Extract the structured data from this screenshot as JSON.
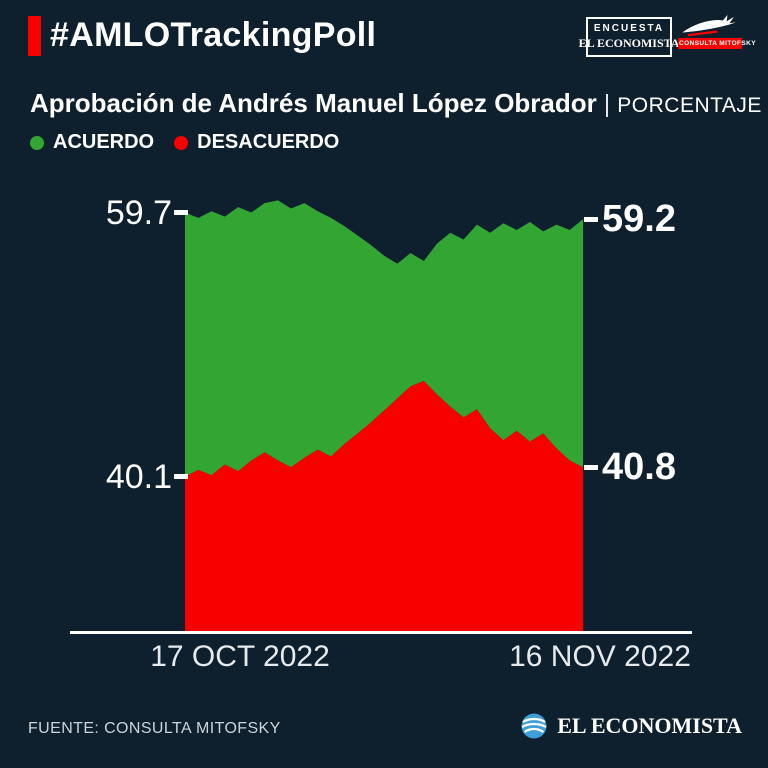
{
  "page": {
    "bg": "#0e1f2e",
    "accent_red": "#f80000",
    "green": "#33a532",
    "brand_blue": "#3f9fd8"
  },
  "header": {
    "hashtag": "#AMLOTrackingPoll",
    "encuesta_logo": {
      "top": "ENCUESTA",
      "bottom": "EL ECONOMISTA"
    },
    "mitofsky_logo": {
      "label": "CONSULTA MITOFSKY"
    }
  },
  "title": {
    "main": "Aprobación de Andrés Manuel López Obrador",
    "separator": "|",
    "suffix": "PORCENTAJE"
  },
  "legend": [
    {
      "label": "ACUERDO",
      "color": "#33a532"
    },
    {
      "label": "DESACUERDO",
      "color": "#f80000"
    }
  ],
  "chart_data": {
    "type": "area",
    "title": "Aprobación de Andrés Manuel López Obrador (porcentaje)",
    "x_axis": {
      "tick_labels": [
        "17 OCT 2022",
        "16 NOV 2022"
      ]
    },
    "ylim": [
      28.5,
      61
    ],
    "grid": false,
    "legend_position": "top-left",
    "series": [
      {
        "name": "ACUERDO",
        "color": "#33a532",
        "values": [
          59.7,
          59.3,
          59.8,
          59.4,
          60.1,
          59.7,
          60.4,
          60.6,
          60.0,
          60.4,
          59.8,
          59.3,
          58.7,
          58.0,
          57.3,
          56.5,
          55.9,
          56.7,
          56.1,
          57.4,
          58.2,
          57.7,
          58.8,
          58.2,
          58.9,
          58.4,
          59.0,
          58.3,
          58.8,
          58.4,
          59.2
        ]
      },
      {
        "name": "DESACUERDO",
        "color": "#f80000",
        "values": [
          40.1,
          40.6,
          40.2,
          41.0,
          40.5,
          41.3,
          41.9,
          41.3,
          40.8,
          41.5,
          42.1,
          41.6,
          42.5,
          43.3,
          44.1,
          45.0,
          45.9,
          46.8,
          47.2,
          46.2,
          45.3,
          44.5,
          45.1,
          43.7,
          42.8,
          43.5,
          42.7,
          43.3,
          42.2,
          41.3,
          40.8
        ]
      }
    ],
    "edge_labels": {
      "start": [
        "59.7",
        "40.1"
      ],
      "end": [
        "59.2",
        "40.8"
      ]
    }
  },
  "footer": {
    "source": "FUENTE: CONSULTA MITOFSKY",
    "brand": "EL ECONOMISTA"
  }
}
